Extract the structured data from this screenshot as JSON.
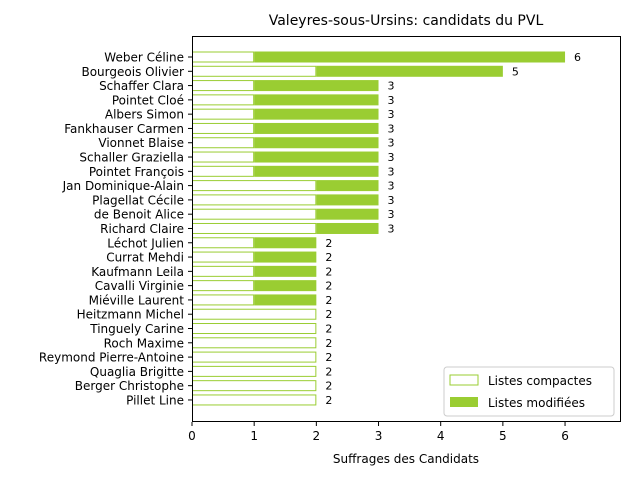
{
  "chart_data": {
    "type": "bar",
    "orientation": "horizontal",
    "stacked": true,
    "title": "Valeyres-sous-Ursins: candidats du PVL",
    "xlabel": "Suffrages des Candidats",
    "ylabel": "",
    "xlim": [
      0,
      6.9
    ],
    "xticks": [
      0,
      1,
      2,
      3,
      4,
      5,
      6
    ],
    "grid": false,
    "legend_position": "bottom-right",
    "categories": [
      "Weber Céline",
      "Bourgeois Olivier",
      "Schaffer Clara",
      "Pointet Cloé",
      "Albers Simon",
      "Fankhauser Carmen",
      "Vionnet Blaise",
      "Schaller Graziella",
      "Pointet François",
      "Jan Dominique-Alain",
      "Plagellat Cécile",
      "de Benoit Alice",
      "Richard Claire",
      "Léchot Julien",
      "Currat Mehdi",
      "Kaufmann Leila",
      "Cavalli Virginie",
      "Miéville Laurent",
      "Heitzmann Michel",
      "Tinguely Carine",
      "Roch Maxime",
      "Reymond Pierre-Antoine",
      "Quaglia Brigitte",
      "Berger Christophe",
      "Pillet Line"
    ],
    "series": [
      {
        "name": "Listes compactes",
        "color": "#9acd32",
        "style": "outline",
        "values": [
          1,
          2,
          1,
          1,
          1,
          1,
          1,
          1,
          1,
          2,
          2,
          2,
          2,
          1,
          1,
          1,
          1,
          1,
          2,
          2,
          2,
          2,
          2,
          2,
          2
        ]
      },
      {
        "name": "Listes modifiées",
        "color": "#9acd32",
        "style": "filled",
        "values": [
          5,
          3,
          2,
          2,
          2,
          2,
          2,
          2,
          2,
          1,
          1,
          1,
          1,
          1,
          1,
          1,
          1,
          1,
          0,
          0,
          0,
          0,
          0,
          0,
          0
        ]
      }
    ],
    "totals": [
      6,
      5,
      3,
      3,
      3,
      3,
      3,
      3,
      3,
      3,
      3,
      3,
      3,
      2,
      2,
      2,
      2,
      2,
      2,
      2,
      2,
      2,
      2,
      2,
      2
    ]
  }
}
